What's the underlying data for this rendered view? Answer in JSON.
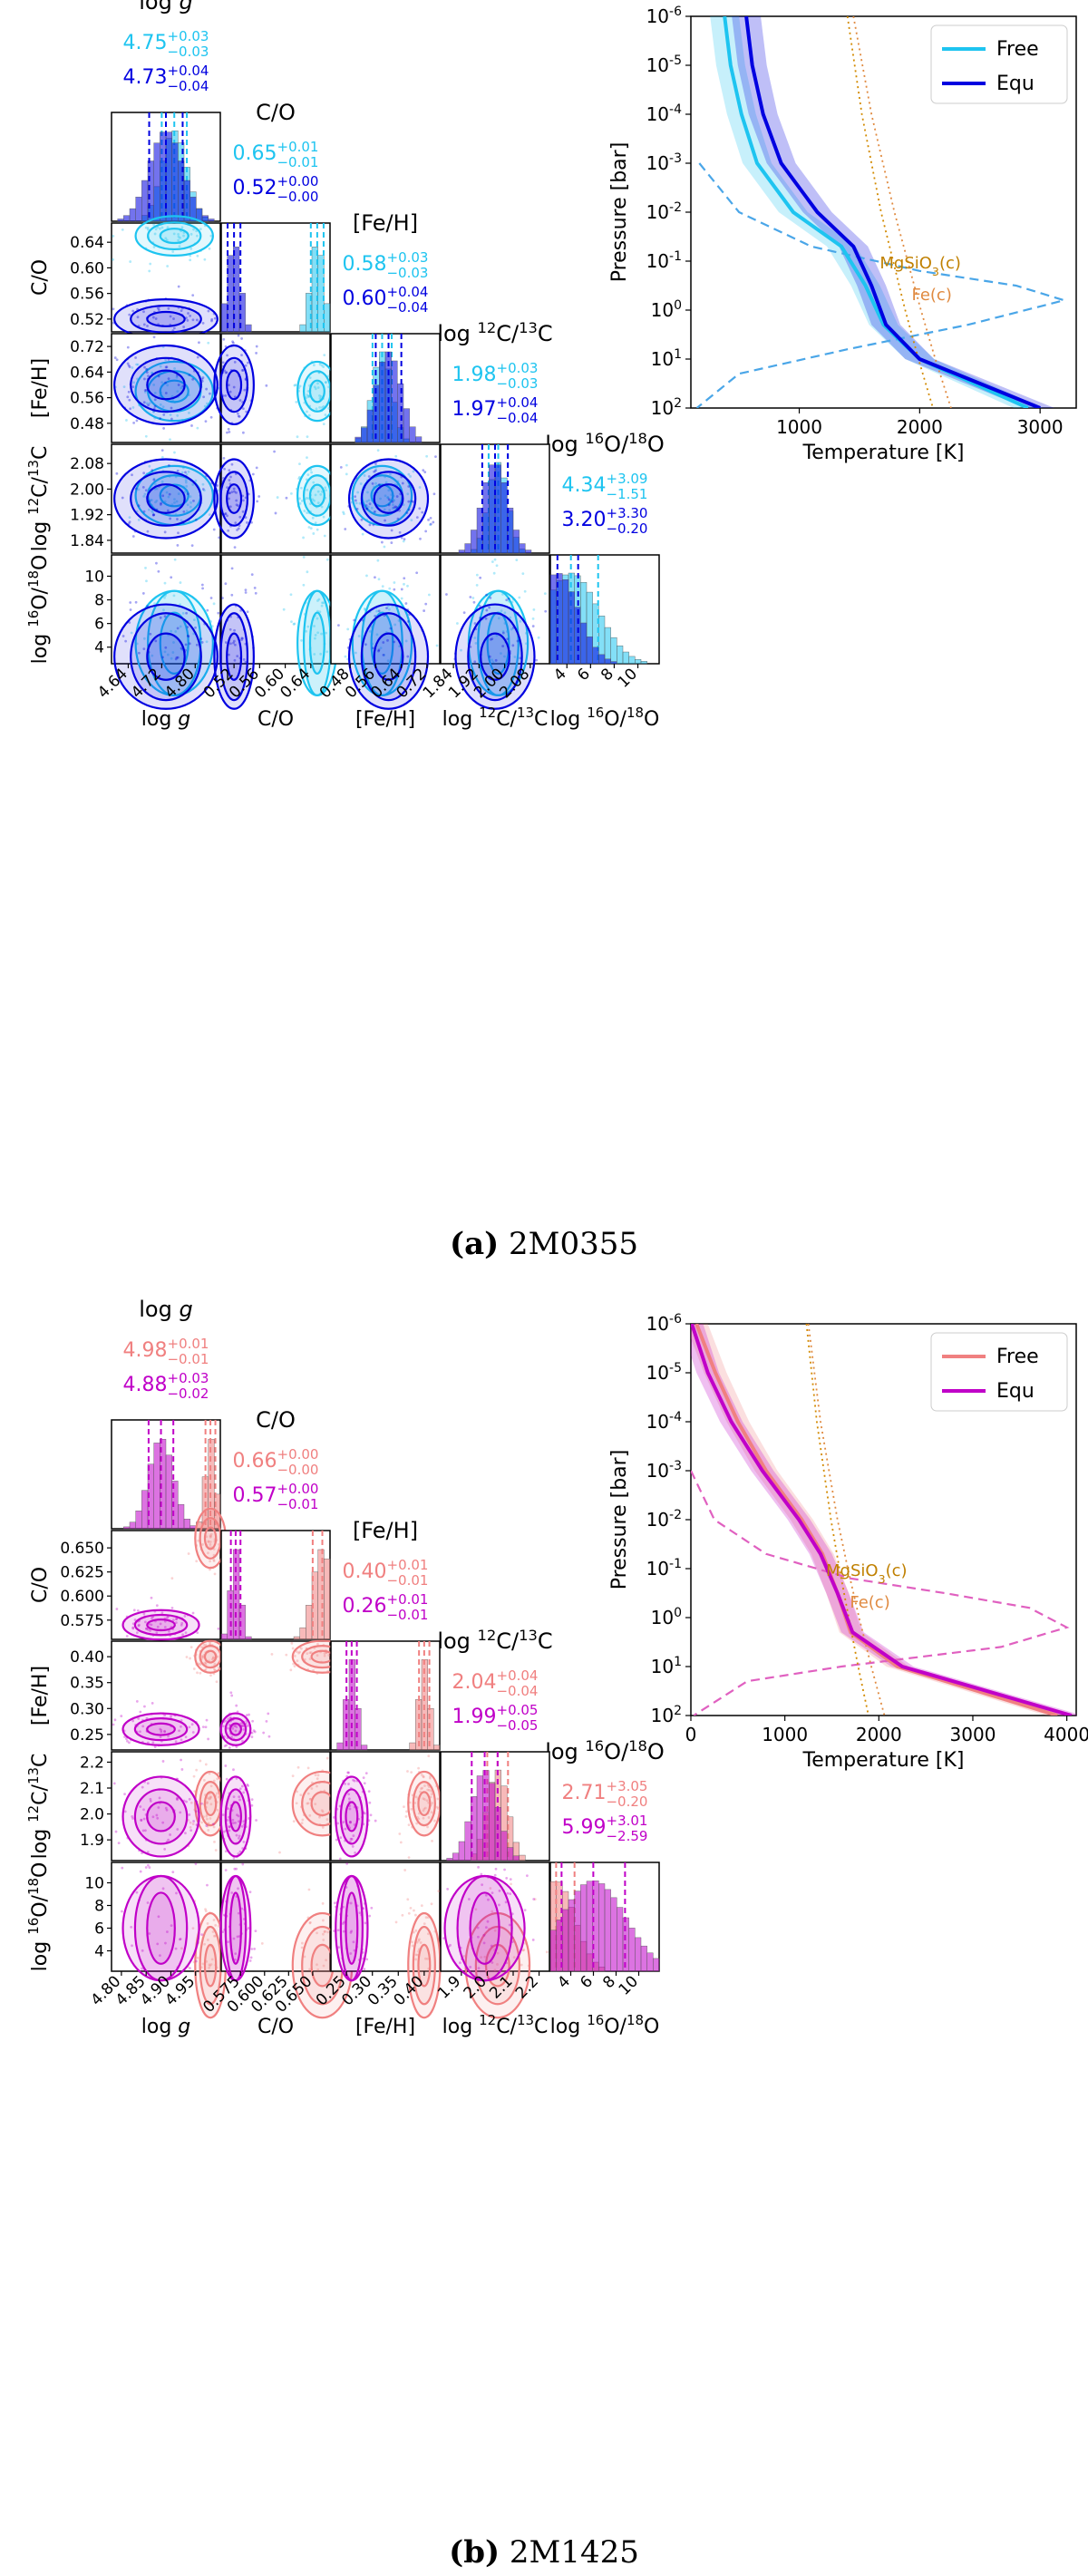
{
  "figure": {
    "panels": [
      {
        "id": "a",
        "caption_letter": "(a)",
        "caption_text": "2M0355",
        "colors": {
          "free": "#1ec4f0",
          "equ": "#0000e0",
          "mid": "#4aa6e8"
        },
        "params": [
          {
            "title_main": "log g",
            "summary_free": "4.75 (+0.03/−0.03)",
            "summary_equ": "4.73 (+0.04/−0.04)",
            "axis_label": "log g",
            "ticks": [
              "4.64",
              "4.72",
              "4.80"
            ],
            "range": [
              4.6,
              4.86
            ]
          },
          {
            "title_main": "C/O",
            "summary_free": "0.65 (+0.01/−0.01)",
            "summary_equ": "0.52 (+0.00/−0.00)",
            "axis_label": "C/O",
            "ticks": [
              "0.52",
              "0.56",
              "0.60",
              "0.64"
            ],
            "range": [
              0.5,
              0.67
            ]
          },
          {
            "title_main": "[Fe/H]",
            "summary_free": "0.58 (+0.03/−0.03)",
            "summary_equ": "0.60 (+0.04/−0.04)",
            "axis_label": "[Fe/H]",
            "ticks": [
              "0.48",
              "0.56",
              "0.64",
              "0.72"
            ],
            "range": [
              0.42,
              0.76
            ]
          },
          {
            "title_main": "log 12C/13C",
            "summary_free": "1.98 (+0.03/−0.03)",
            "summary_equ": "1.97 (+0.04/−0.04)",
            "axis_label": "log 12C/13C",
            "ticks": [
              "1.84",
              "1.92",
              "2.00",
              "2.08"
            ],
            "range": [
              1.8,
              2.14
            ]
          },
          {
            "title_main": "log 16O/18O",
            "summary_free": "4.34 (+3.09/−1.51)",
            "summary_equ": "3.20 (+3.30/−0.20)",
            "axis_label": "log 16O/18O",
            "ticks": [
              "4",
              "6",
              "8",
              "10"
            ],
            "range": [
              2.6,
              11.8
            ]
          }
        ],
        "pt_profile": {
          "type": "line",
          "xlabel": "Temperature [K]",
          "ylabel": "Pressure [bar]",
          "xlim": [
            100,
            3300
          ],
          "ylim_log10": [
            2,
            -6
          ],
          "xticks": [
            "1000",
            "2000",
            "3000"
          ],
          "yticks": [
            "10^-6",
            "10^-5",
            "10^-4",
            "10^-3",
            "10^-2",
            "10^-1",
            "10^0",
            "10^1",
            "10^2"
          ],
          "legend": [
            "Free",
            "Equ"
          ],
          "annotations": [
            "MgSiO3(c)",
            "Fe(c)"
          ],
          "free_profile": {
            "log10P": [
              -6,
              -5,
              -4,
              -3,
              -2,
              -1.3,
              -0.5,
              0.3,
              1,
              2
            ],
            "T": [
              380,
              430,
              520,
              650,
              950,
              1350,
              1550,
              1700,
              2000,
              2900
            ]
          },
          "equ_profile": {
            "log10P": [
              -6,
              -5,
              -4,
              -3,
              -2,
              -1.3,
              -0.5,
              0.3,
              1,
              2
            ],
            "T": [
              560,
              610,
              700,
              850,
              1150,
              1450,
              1600,
              1720,
              2000,
              3000
            ]
          },
          "mgsio3_condensation": {
            "log10P": [
              -6,
              -4,
              -2,
              -1,
              0,
              1,
              2
            ],
            "T": [
              1400,
              1520,
              1680,
              1780,
              1880,
              1990,
              2110
            ]
          },
          "fe_condensation": {
            "log10P": [
              -6,
              -4,
              -2,
              -1,
              0,
              1,
              2
            ],
            "T": [
              1450,
              1600,
              1790,
              1900,
              2010,
              2130,
              2260
            ]
          },
          "contribution_function_free": {
            "log10P": [
              -3,
              -2,
              -1.3,
              -0.8,
              -0.5,
              -0.2,
              0.3,
              0.8,
              1.3,
              2
            ],
            "T": [
              170,
              500,
              1100,
              2000,
              2800,
              3200,
              2400,
              1400,
              500,
              150
            ]
          }
        }
      },
      {
        "id": "b",
        "caption_letter": "(b)",
        "caption_text": "2M1425",
        "colors": {
          "free": "#f08080",
          "equ": "#c000c8",
          "mid": "#e060c0"
        },
        "params": [
          {
            "title_main": "log g",
            "summary_free": "4.98 (+0.01/−0.01)",
            "summary_equ": "4.88 (+0.03/−0.02)",
            "axis_label": "log g",
            "ticks": [
              "4.80",
              "4.85",
              "4.90",
              "4.95"
            ],
            "range": [
              4.78,
              5.0
            ]
          },
          {
            "title_main": "C/O",
            "summary_free": "0.66 (+0.00/−0.00)",
            "summary_equ": "0.57 (+0.00/−0.01)",
            "axis_label": "C/O",
            "ticks": [
              "0.575",
              "0.600",
              "0.625",
              "0.650"
            ],
            "range": [
              0.555,
              0.668
            ]
          },
          {
            "title_main": "[Fe/H]",
            "summary_free": "0.40 (+0.01/−0.01)",
            "summary_equ": "0.26 (+0.01/−0.01)",
            "axis_label": "[Fe/H]",
            "ticks": [
              "0.25",
              "0.30",
              "0.35",
              "0.40"
            ],
            "range": [
              0.22,
              0.43
            ]
          },
          {
            "title_main": "log 12C/13C",
            "summary_free": "2.04 (+0.04/−0.04)",
            "summary_equ": "1.99 (+0.05/−0.05)",
            "axis_label": "log 12C/13C",
            "ticks": [
              "1.9",
              "2.0",
              "2.1",
              "2.2"
            ],
            "range": [
              1.82,
              2.24
            ]
          },
          {
            "title_main": "log 16O/18O",
            "summary_free": "2.71 (+3.05/−0.20)",
            "summary_equ": "5.99 (+3.01/−2.59)",
            "axis_label": "log 16O/18O",
            "ticks": [
              "4",
              "6",
              "8",
              "10"
            ],
            "range": [
              2.2,
              11.8
            ]
          }
        ],
        "pt_profile": {
          "type": "line",
          "xlabel": "Temperature [K]",
          "ylabel": "Pressure [bar]",
          "xlim": [
            0,
            4100
          ],
          "ylim_log10": [
            2,
            -6
          ],
          "xticks": [
            "0",
            "1000",
            "2000",
            "3000",
            "4000"
          ],
          "yticks": [
            "10^-6",
            "10^-5",
            "10^-4",
            "10^-3",
            "10^-2",
            "10^-1",
            "10^0",
            "10^1",
            "10^2"
          ],
          "legend": [
            "Free",
            "Equ"
          ],
          "annotations": [
            "MgSiO3(c)",
            "Fe(c)"
          ],
          "free_profile": {
            "log10P": [
              -6,
              -5,
              -4,
              -3,
              -2,
              -1.3,
              -0.5,
              0.3,
              1,
              2
            ],
            "T": [
              60,
              260,
              500,
              800,
              1180,
              1400,
              1560,
              1700,
              2200,
              3900
            ]
          },
          "equ_profile": {
            "log10P": [
              -6,
              -5,
              -4,
              -3,
              -2,
              -1.3,
              -0.5,
              0.3,
              1,
              2
            ],
            "T": [
              10,
              180,
              430,
              760,
              1150,
              1380,
              1560,
              1720,
              2250,
              4050
            ]
          },
          "mgsio3_condensation": {
            "log10P": [
              -6,
              -4,
              -2,
              -1,
              0,
              1,
              2
            ],
            "T": [
              1230,
              1340,
              1490,
              1580,
              1680,
              1780,
              1890
            ]
          },
          "fe_condensation": {
            "log10P": [
              -6,
              -4,
              -2,
              -1,
              0,
              1,
              2
            ],
            "T": [
              1250,
              1380,
              1560,
              1670,
              1790,
              1920,
              2060
            ]
          },
          "contribution_function_free": {
            "log10P": [
              -3,
              -2,
              -1.3,
              -0.8,
              -0.5,
              -0.2,
              0.2,
              0.6,
              1.0,
              1.3,
              2
            ],
            "T": [
              0,
              250,
              800,
              1700,
              2700,
              3600,
              4000,
              3300,
              1600,
              600,
              30
            ]
          }
        }
      }
    ]
  }
}
